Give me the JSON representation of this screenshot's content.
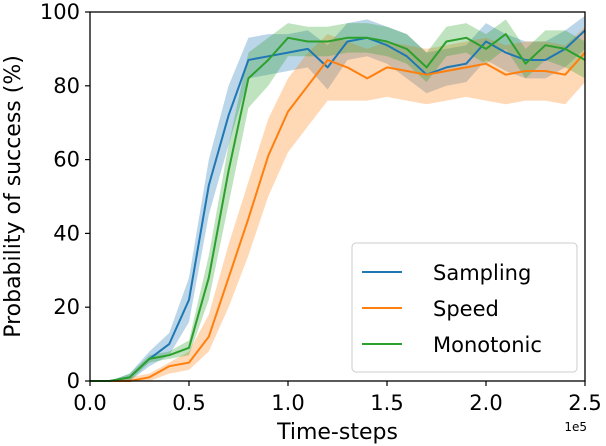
{
  "chart_data": {
    "type": "line",
    "title": "",
    "xlabel": "Time-steps",
    "ylabel": "Probability of success (%)",
    "x_offset_label": "1e5",
    "xlim": [
      0,
      2.5
    ],
    "ylim": [
      0,
      100
    ],
    "xticks": [
      0.0,
      0.5,
      1.0,
      1.5,
      2.0,
      2.5
    ],
    "xtick_labels": [
      "0.0",
      "0.5",
      "1.0",
      "1.5",
      "2.0",
      "2.5"
    ],
    "yticks": [
      0,
      20,
      40,
      60,
      80,
      100
    ],
    "ytick_labels": [
      "0",
      "20",
      "40",
      "60",
      "80",
      "100"
    ],
    "grid": false,
    "legend_position": "lower-right",
    "x": [
      0.0,
      0.1,
      0.2,
      0.3,
      0.4,
      0.5,
      0.6,
      0.7,
      0.8,
      0.9,
      1.0,
      1.1,
      1.2,
      1.3,
      1.4,
      1.5,
      1.6,
      1.7,
      1.8,
      1.9,
      2.0,
      2.1,
      2.2,
      2.3,
      2.4,
      2.5
    ],
    "series": [
      {
        "name": "Sampling",
        "color": "#1f77b4",
        "values": [
          0,
          0,
          1,
          6,
          10,
          22,
          53,
          72,
          87,
          88,
          89,
          90,
          85,
          92,
          93,
          91,
          88,
          83,
          85,
          86,
          92,
          89,
          87,
          87,
          90,
          95
        ],
        "lower": [
          0,
          0,
          0,
          4,
          7,
          16,
          45,
          64,
          82,
          83,
          84,
          85,
          79,
          87,
          88,
          86,
          82,
          78,
          80,
          81,
          87,
          84,
          82,
          82,
          85,
          90
        ],
        "upper": [
          0,
          0,
          2,
          8,
          13,
          28,
          60,
          80,
          93,
          94,
          94,
          95,
          91,
          97,
          98,
          96,
          94,
          89,
          90,
          91,
          97,
          94,
          92,
          92,
          95,
          99
        ]
      },
      {
        "name": "Speed",
        "color": "#ff7f0e",
        "values": [
          0,
          0,
          0,
          1,
          4,
          5,
          12,
          28,
          44,
          61,
          73,
          80,
          87,
          85,
          82,
          85,
          84,
          83,
          84,
          85,
          86,
          83,
          84,
          84,
          83,
          89
        ],
        "lower": [
          0,
          0,
          0,
          0,
          2,
          3,
          8,
          20,
          34,
          50,
          62,
          69,
          76,
          76,
          76,
          77,
          76,
          75,
          76,
          77,
          76,
          75,
          76,
          76,
          75,
          81
        ],
        "upper": [
          0,
          0,
          1,
          2,
          5,
          8,
          18,
          37,
          54,
          71,
          82,
          89,
          94,
          92,
          90,
          92,
          91,
          90,
          91,
          92,
          93,
          91,
          92,
          92,
          91,
          96
        ]
      },
      {
        "name": "Monotonic",
        "color": "#2ca02c",
        "values": [
          0,
          0,
          1,
          6,
          7,
          9,
          28,
          57,
          82,
          87,
          93,
          92,
          92,
          93,
          93,
          92,
          90,
          85,
          92,
          93,
          90,
          94,
          86,
          91,
          90,
          87
        ],
        "lower": [
          0,
          0,
          0,
          5,
          6,
          7,
          22,
          48,
          74,
          80,
          88,
          88,
          88,
          89,
          89,
          88,
          86,
          81,
          88,
          89,
          86,
          90,
          82,
          87,
          85,
          82
        ],
        "upper": [
          0,
          0,
          2,
          7,
          8,
          11,
          34,
          64,
          89,
          93,
          97,
          96,
          96,
          97,
          97,
          96,
          94,
          89,
          96,
          97,
          94,
          98,
          90,
          95,
          95,
          92
        ]
      }
    ]
  }
}
